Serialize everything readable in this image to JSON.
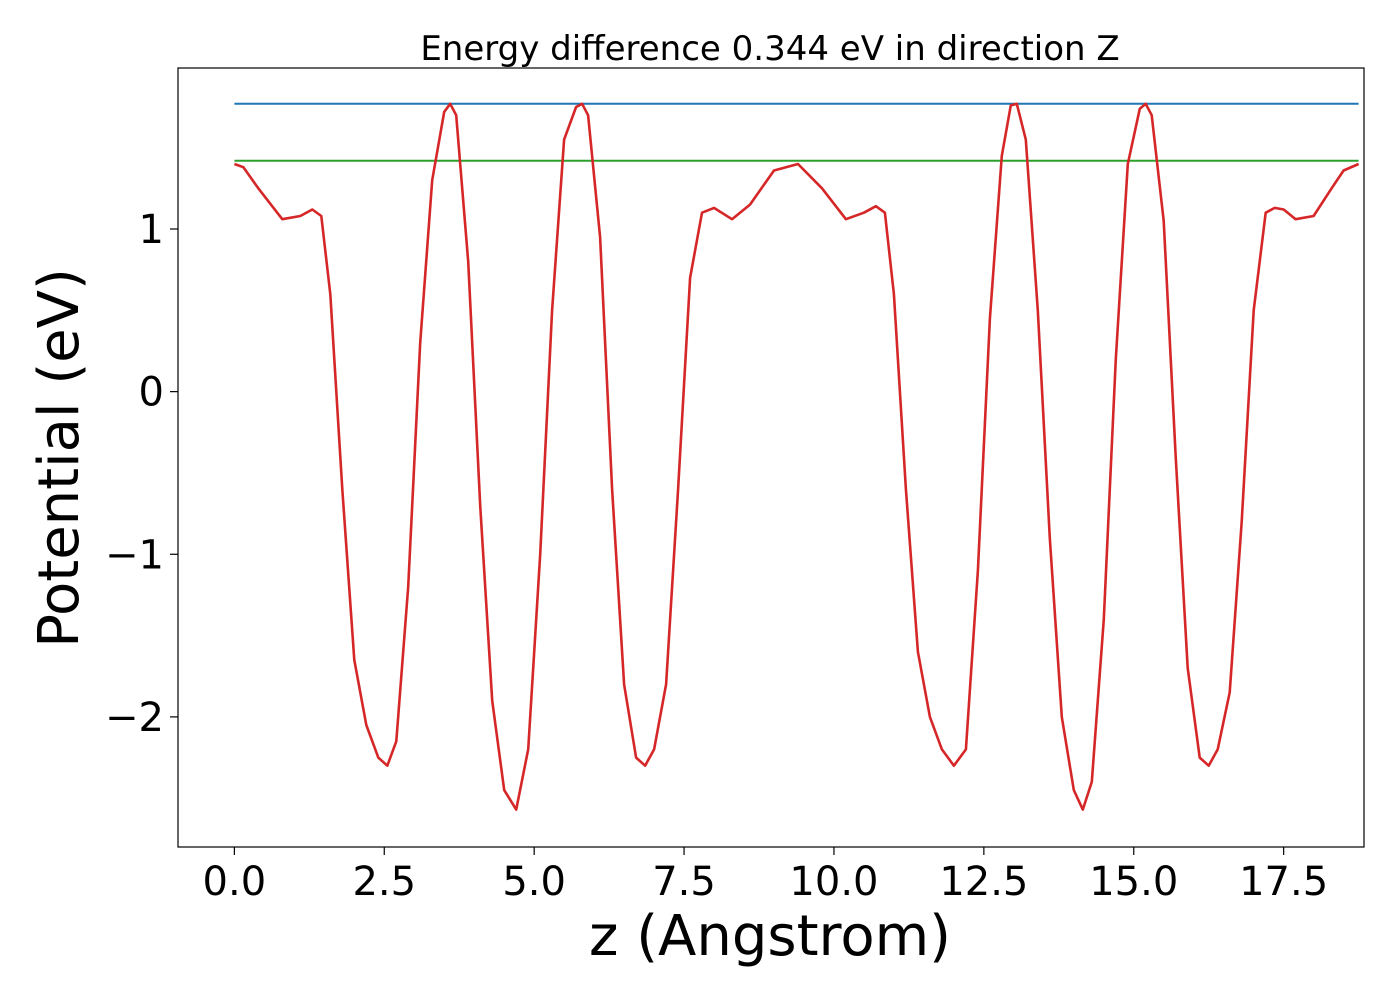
{
  "chart_data": {
    "type": "line",
    "title": "Energy difference 0.344 eV in direction Z",
    "xlabel": "z (Angstrom)",
    "ylabel": "Potential (eV)",
    "xlim": [
      -0.94,
      18.84
    ],
    "ylim": [
      -2.8,
      1.99
    ],
    "xticks": [
      0.0,
      2.5,
      5.0,
      7.5,
      10.0,
      12.5,
      15.0,
      17.5
    ],
    "xtick_labels": [
      "0.0",
      "2.5",
      "5.0",
      "7.5",
      "10.0",
      "12.5",
      "15.0",
      "17.5"
    ],
    "yticks": [
      -2,
      -1,
      0,
      1
    ],
    "ytick_labels": [
      "−2",
      "−1",
      "0",
      "1"
    ],
    "grid": false,
    "series": [
      {
        "color": "#1f77b4",
        "x": [
          0.0,
          18.75
        ],
        "y": [
          1.77,
          1.77
        ]
      },
      {
        "color": "#2ca02c",
        "x": [
          0.0,
          18.75
        ],
        "y": [
          1.42,
          1.42
        ]
      },
      {
        "color": "#d62728",
        "x": [
          0.0,
          0.15,
          0.4,
          0.8,
          1.1,
          1.3,
          1.45,
          1.6,
          1.8,
          2.0,
          2.2,
          2.4,
          2.55,
          2.7,
          2.9,
          3.1,
          3.3,
          3.5,
          3.6,
          3.7,
          3.9,
          4.1,
          4.3,
          4.5,
          4.7,
          4.9,
          5.1,
          5.3,
          5.5,
          5.7,
          5.8,
          5.9,
          6.1,
          6.3,
          6.5,
          6.7,
          6.85,
          7.0,
          7.2,
          7.4,
          7.6,
          7.8,
          8.0,
          8.3,
          8.6,
          9.0,
          9.4,
          9.8,
          10.2,
          10.5,
          10.7,
          10.85,
          11.0,
          11.2,
          11.4,
          11.6,
          11.8,
          12.0,
          12.2,
          12.4,
          12.6,
          12.8,
          12.95,
          13.05,
          13.2,
          13.4,
          13.6,
          13.8,
          14.0,
          14.15,
          14.3,
          14.5,
          14.7,
          14.9,
          15.1,
          15.2,
          15.3,
          15.5,
          15.7,
          15.9,
          16.1,
          16.25,
          16.4,
          16.6,
          16.8,
          17.0,
          17.2,
          17.35,
          17.5,
          17.7,
          18.0,
          18.3,
          18.5,
          18.75
        ],
        "y": [
          1.4,
          1.38,
          1.25,
          1.06,
          1.08,
          1.12,
          1.08,
          0.6,
          -0.6,
          -1.65,
          -2.05,
          -2.25,
          -2.3,
          -2.15,
          -1.2,
          0.3,
          1.3,
          1.72,
          1.77,
          1.7,
          0.8,
          -0.7,
          -1.9,
          -2.45,
          -2.57,
          -2.2,
          -1.0,
          0.5,
          1.55,
          1.75,
          1.77,
          1.7,
          0.95,
          -0.6,
          -1.8,
          -2.25,
          -2.3,
          -2.2,
          -1.8,
          -0.6,
          0.7,
          1.1,
          1.13,
          1.06,
          1.15,
          1.36,
          1.4,
          1.25,
          1.06,
          1.1,
          1.14,
          1.1,
          0.6,
          -0.6,
          -1.6,
          -2.0,
          -2.2,
          -2.3,
          -2.2,
          -1.1,
          0.45,
          1.45,
          1.76,
          1.77,
          1.55,
          0.5,
          -0.9,
          -2.0,
          -2.45,
          -2.57,
          -2.4,
          -1.4,
          0.2,
          1.4,
          1.74,
          1.77,
          1.7,
          1.05,
          -0.4,
          -1.7,
          -2.25,
          -2.3,
          -2.2,
          -1.85,
          -0.8,
          0.5,
          1.1,
          1.13,
          1.12,
          1.06,
          1.08,
          1.25,
          1.36,
          1.4
        ]
      }
    ]
  }
}
